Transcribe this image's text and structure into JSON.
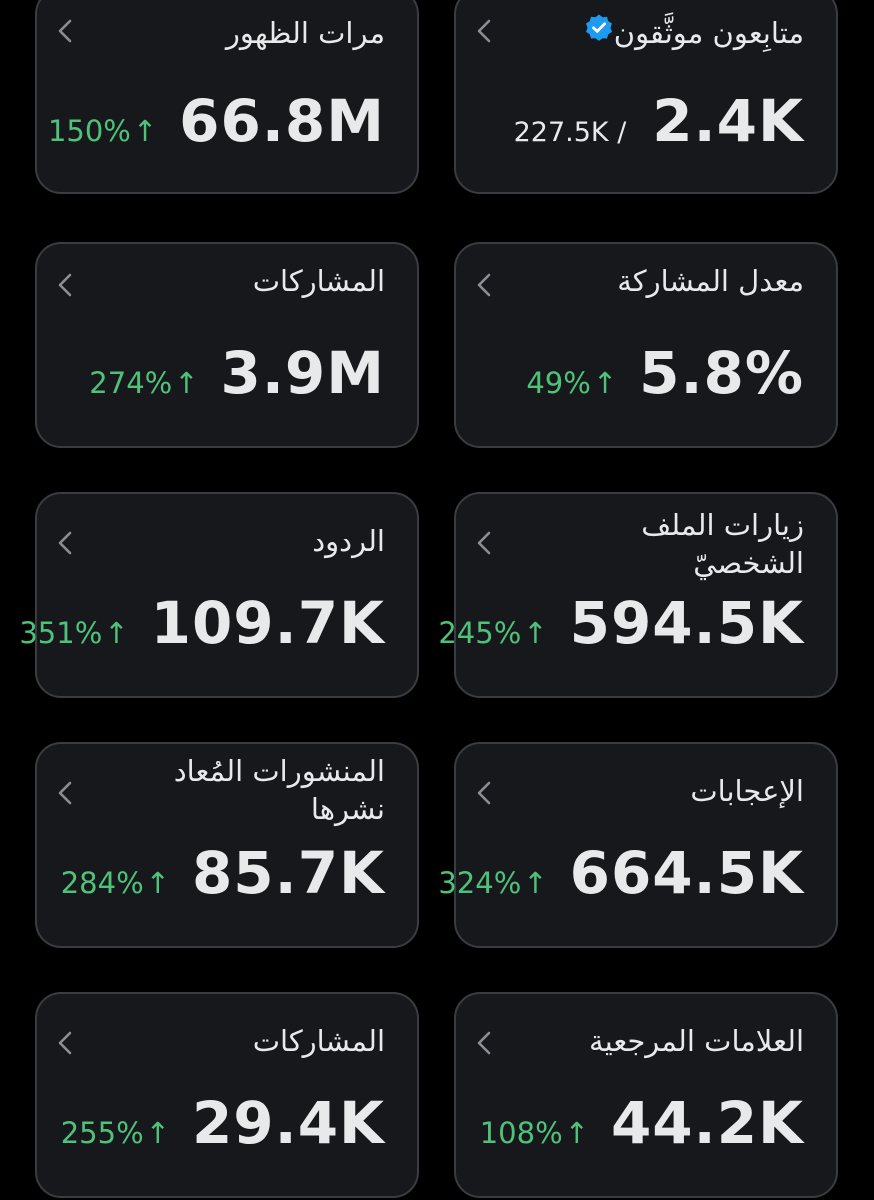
{
  "colors": {
    "background": "#000000",
    "card": "#17181c",
    "card_border": "#3a3c41",
    "text": "#e7e9ea",
    "positive": "#4fc27a",
    "verified": "#1d9bf0"
  },
  "cards": [
    {
      "title": "متابِعون موثَّقون",
      "value": "2.4K",
      "sub": "227.5K /",
      "change": "",
      "icons": [
        "verified-badge-icon",
        "chevron-left-icon"
      ]
    },
    {
      "title": "مرات الظهور",
      "value": "66.8M",
      "change": "150%",
      "arrow": "↑"
    },
    {
      "title": "معدل المشاركة",
      "value": "5.8%",
      "change": "49%",
      "arrow": "↑"
    },
    {
      "title": "المشاركات",
      "value": "3.9M",
      "change": "274%",
      "arrow": "↑"
    },
    {
      "title": "زيارات الملف\nالشخصيّ",
      "value": "594.5K",
      "change": "245%",
      "arrow": "↑"
    },
    {
      "title": "الردود",
      "value": "109.7K",
      "change": "351%",
      "arrow": "↑"
    },
    {
      "title": "الإعجابات",
      "value": "664.5K",
      "change": "324%",
      "arrow": "↑"
    },
    {
      "title": "المنشورات المُعاد\nنشرها",
      "value": "85.7K",
      "change": "284%",
      "arrow": "↑"
    },
    {
      "title": "العلامات المرجعية",
      "value": "44.2K",
      "change": "108%",
      "arrow": "↑"
    },
    {
      "title": "المشاركات",
      "value": "29.4K",
      "change": "255%",
      "arrow": "↑"
    }
  ]
}
